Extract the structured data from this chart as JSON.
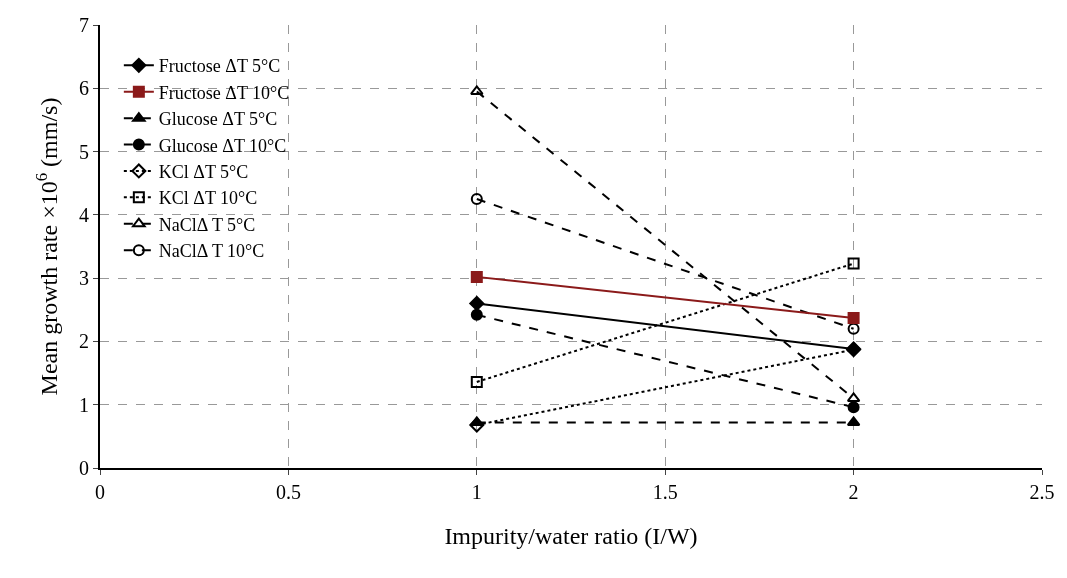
{
  "chart_data": {
    "type": "line",
    "xlabel": "Impurity/water ratio (I/W)",
    "ylabel": "Mean growth rate ×10$^{6}$ (mm/s)",
    "xlim": [
      0,
      2.5
    ],
    "xticks": [
      0,
      0.5,
      1,
      1.5,
      2,
      2.5
    ],
    "ylim": [
      0,
      7
    ],
    "yticks": [
      0,
      1,
      2,
      3,
      4,
      5,
      6,
      7
    ],
    "grid": true,
    "legend": "top left",
    "x": [
      1,
      2
    ],
    "series": [
      {
        "name": "Fructose ΔT 5°C",
        "color": "#000000",
        "values": [
          2.6,
          1.88
        ],
        "marker": "diamond",
        "line_style": "solid"
      },
      {
        "name": "Fructose ΔT 10°C",
        "color": "#8b1a1a",
        "values": [
          3.02,
          2.37
        ],
        "marker": "square",
        "line_style": "solid"
      },
      {
        "name": "Glucose ΔT 5°C",
        "color": "#000000",
        "values": [
          0.72,
          0.72
        ],
        "marker": "triangle",
        "line_style": "dashed"
      },
      {
        "name": "Glucose ΔT 10°C",
        "color": "#000000",
        "values": [
          2.42,
          0.96
        ],
        "marker": "circle",
        "line_style": "dashed"
      },
      {
        "name": "KCl ΔT 5°C",
        "color": "#000000",
        "values": [
          0.68,
          1.87
        ],
        "marker": "diamond",
        "line_style": "dotted"
      },
      {
        "name": "KCl ΔT 10°C",
        "color": "#000000",
        "values": [
          1.36,
          3.23
        ],
        "marker": "square",
        "line_style": "dotted"
      },
      {
        "name": "NaClΔ T 5°C",
        "color": "#000000",
        "values": [
          5.95,
          1.1
        ],
        "marker": "triangle",
        "line_style": "dashed"
      },
      {
        "name": "NaClΔ T 10°C",
        "color": "#000000",
        "values": [
          4.25,
          2.2
        ],
        "marker": "circle",
        "line_style": "dashed"
      }
    ]
  }
}
